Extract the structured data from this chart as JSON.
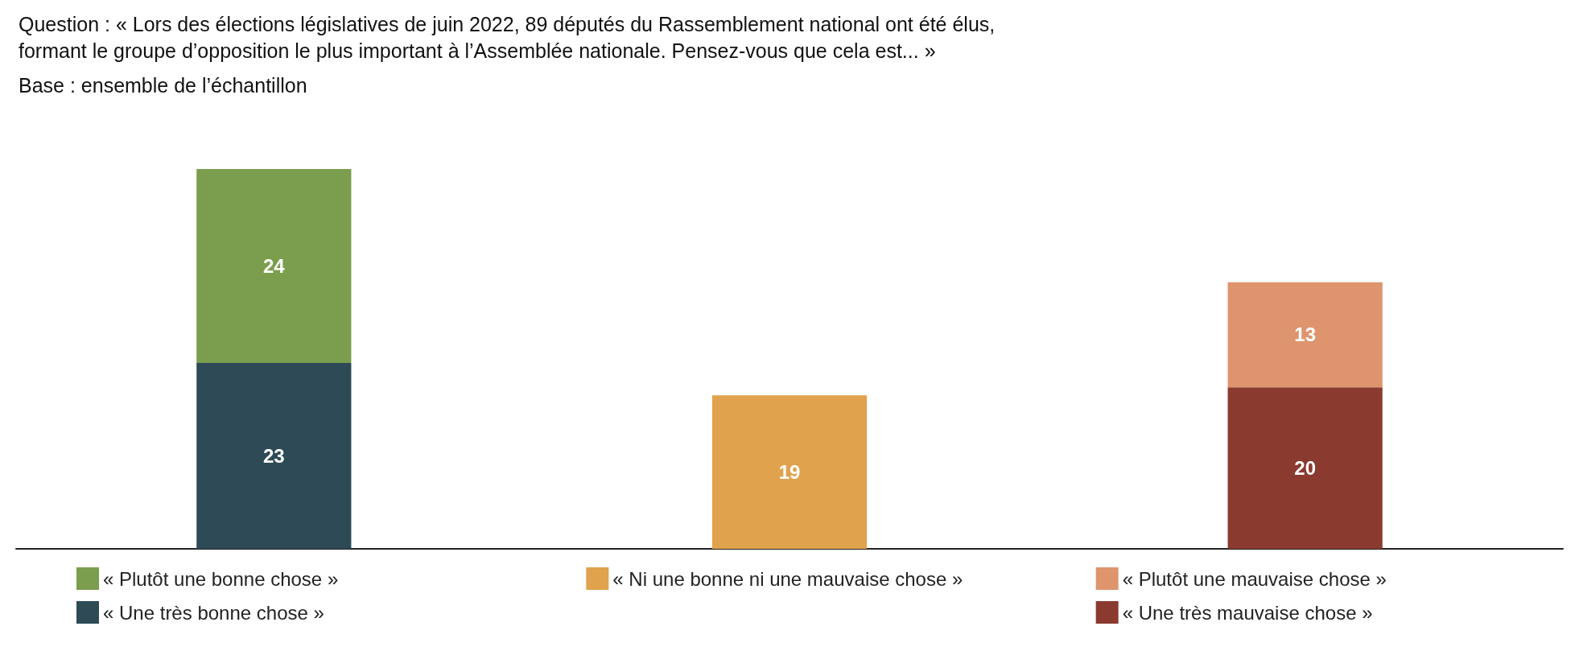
{
  "chart_data": {
    "type": "bar",
    "title": "Question : « Lors des élections législatives de juin 2022, 89 députés du Rassemblement national ont été élus, formant le groupe d’opposition le plus important à l’Assemblée nationale. Pensez-vous que cela est... »",
    "subtitle": "Base : ensemble de l’échantillon",
    "categories": [
      null,
      null,
      null
    ],
    "stacked": true,
    "data_labels": true,
    "legend": "bottom",
    "series": [
      {
        "name": "« Une très bonne chose »",
        "color": "#2d4a56",
        "values": [
          23,
          null,
          null
        ]
      },
      {
        "name": "« Plutôt une bonne chose »",
        "color": "#7a9e4e",
        "values": [
          24,
          null,
          null
        ]
      },
      {
        "name": "« Ni une bonne ni une mauvaise chose »",
        "color": "#e0a24c",
        "values": [
          null,
          19,
          null
        ]
      },
      {
        "name": "« Une très mauvaise chose »",
        "color": "#8b3a30",
        "values": [
          null,
          null,
          20
        ]
      },
      {
        "name": "« Plutôt une mauvaise chose »",
        "color": "#de946d",
        "values": [
          null,
          null,
          13
        ]
      }
    ]
  }
}
